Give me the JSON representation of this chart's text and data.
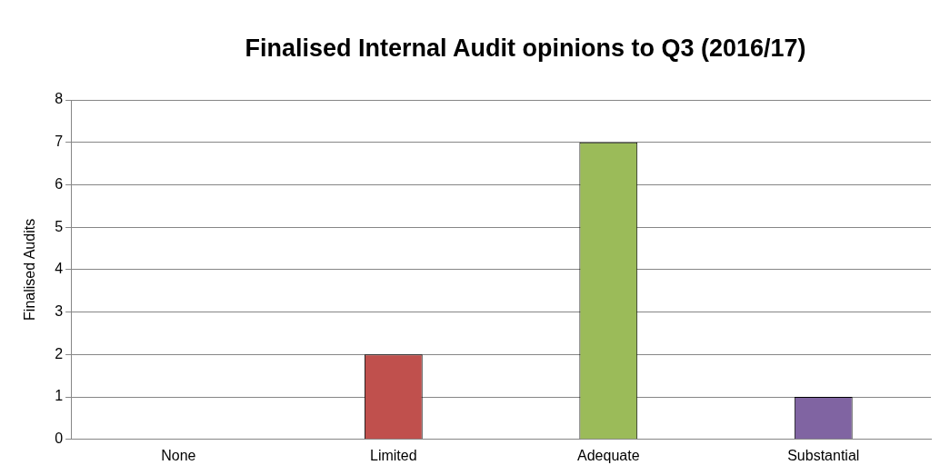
{
  "chart_data": {
    "type": "bar",
    "title": "Finalised Internal Audit opinions to Q3 (2016/17)",
    "ylabel": "Finalised Audits",
    "categories": [
      "None",
      "Limited",
      "Adequate",
      "Substantial"
    ],
    "values": [
      0,
      2,
      7,
      1
    ],
    "colors": [
      "#4f81bd",
      "#c0504d",
      "#9bbb59",
      "#8064a2"
    ],
    "ylim": [
      0,
      8
    ],
    "yticks": [
      0,
      1,
      2,
      3,
      4,
      5,
      6,
      7,
      8
    ],
    "grid": "y",
    "legend": false
  }
}
